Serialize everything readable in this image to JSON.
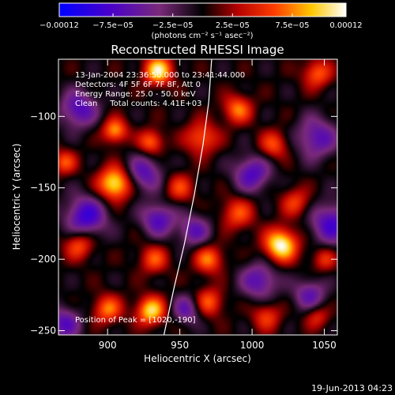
{
  "chart_data": {
    "type": "heatmap",
    "title": "Reconstructed RHESSI Image",
    "xlabel": "Heliocentric X (arcsec)",
    "ylabel": "Heliocentric Y (arcsec)",
    "xlim": [
      866,
      1059
    ],
    "ylim": [
      -253,
      -60
    ],
    "x_ticks": [
      {
        "value": 900,
        "label": "900"
      },
      {
        "value": 950,
        "label": "950"
      },
      {
        "value": 1000,
        "label": "1000"
      },
      {
        "value": 1050,
        "label": "1050"
      }
    ],
    "y_ticks": [
      {
        "value": -100,
        "label": "−100"
      },
      {
        "value": -150,
        "label": "−150"
      },
      {
        "value": -200,
        "label": "−200"
      },
      {
        "value": -250,
        "label": "−250"
      }
    ],
    "colorbar": {
      "range": [
        -0.00012,
        0.00012
      ],
      "unit_label": "(photons cm⁻² s⁻¹ asec⁻²)",
      "ticks": [
        {
          "value": -0.00012,
          "label": "−0.00012"
        },
        {
          "value": -7.5e-05,
          "label": "−7.5e−05"
        },
        {
          "value": -2.5e-05,
          "label": "−2.5e−05"
        },
        {
          "value": 2.5e-05,
          "label": "2.5e−05"
        },
        {
          "value": 7.5e-05,
          "label": "7.5e−05"
        },
        {
          "value": 0.00012,
          "label": "0.00012"
        }
      ]
    },
    "annotations": [
      "13-Jan-2004 23:36:50.000 to 23:41:44.000",
      "Detectors: 4F 5F 6F 7F 8F, Att 0",
      "Energy Range: 25.0 - 50.0 keV",
      "Clean     Total counts: 4.41E+03"
    ],
    "peak": {
      "x": 1020,
      "y": -190,
      "label": "Position of Peak = [1020,-190]"
    },
    "limb_curve": [
      [
        972,
        -60
      ],
      [
        970,
        -90
      ],
      [
        966,
        -120
      ],
      [
        960,
        -155
      ],
      [
        953,
        -190
      ],
      [
        946,
        -220
      ],
      [
        939,
        -253
      ]
    ],
    "blobs": [
      {
        "x": 935,
        "y": -68,
        "a": 0.9,
        "s": 7
      },
      {
        "x": 905,
        "y": -110,
        "a": 0.7,
        "s": 6
      },
      {
        "x": 930,
        "y": -118,
        "a": 0.6,
        "s": 6
      },
      {
        "x": 965,
        "y": -115,
        "a": 0.55,
        "s": 8
      },
      {
        "x": 990,
        "y": -95,
        "a": 0.6,
        "s": 7
      },
      {
        "x": 1015,
        "y": -120,
        "a": 0.5,
        "s": 7
      },
      {
        "x": 1045,
        "y": -70,
        "a": 0.55,
        "s": 7
      },
      {
        "x": 870,
        "y": -132,
        "a": 0.5,
        "s": 6
      },
      {
        "x": 905,
        "y": -147,
        "a": 0.95,
        "s": 8
      },
      {
        "x": 950,
        "y": -150,
        "a": 0.45,
        "s": 7
      },
      {
        "x": 990,
        "y": -168,
        "a": 0.5,
        "s": 8
      },
      {
        "x": 1030,
        "y": -160,
        "a": 0.45,
        "s": 7
      },
      {
        "x": 880,
        "y": -190,
        "a": 0.55,
        "s": 7
      },
      {
        "x": 932,
        "y": -200,
        "a": 0.5,
        "s": 7
      },
      {
        "x": 970,
        "y": -200,
        "a": 0.6,
        "s": 7
      },
      {
        "x": 1020,
        "y": -190,
        "a": 1.0,
        "s": 8
      },
      {
        "x": 1050,
        "y": -200,
        "a": 0.4,
        "s": 6
      },
      {
        "x": 900,
        "y": -235,
        "a": 0.6,
        "s": 7
      },
      {
        "x": 930,
        "y": -236,
        "a": 0.85,
        "s": 7
      },
      {
        "x": 970,
        "y": -230,
        "a": 0.55,
        "s": 7
      },
      {
        "x": 1010,
        "y": -240,
        "a": 0.45,
        "s": 7
      },
      {
        "x": 1045,
        "y": -240,
        "a": 0.4,
        "s": 6
      },
      {
        "x": 880,
        "y": -95,
        "a": -0.6,
        "s": 9
      },
      {
        "x": 925,
        "y": -140,
        "a": -0.55,
        "s": 9
      },
      {
        "x": 885,
        "y": -170,
        "a": -0.7,
        "s": 10
      },
      {
        "x": 935,
        "y": -172,
        "a": -0.6,
        "s": 8
      },
      {
        "x": 960,
        "y": -180,
        "a": -0.5,
        "s": 8
      },
      {
        "x": 1000,
        "y": -140,
        "a": -0.6,
        "s": 9
      },
      {
        "x": 1045,
        "y": -115,
        "a": -0.55,
        "s": 10
      },
      {
        "x": 1055,
        "y": -175,
        "a": -0.65,
        "s": 10
      },
      {
        "x": 1005,
        "y": -215,
        "a": -0.55,
        "s": 9
      },
      {
        "x": 955,
        "y": -235,
        "a": -0.5,
        "s": 7
      },
      {
        "x": 870,
        "y": -245,
        "a": -0.55,
        "s": 8
      },
      {
        "x": 1040,
        "y": -225,
        "a": -0.5,
        "s": 8
      }
    ]
  },
  "footer": {
    "date_stamp": "19-Jun-2013 04:23"
  }
}
